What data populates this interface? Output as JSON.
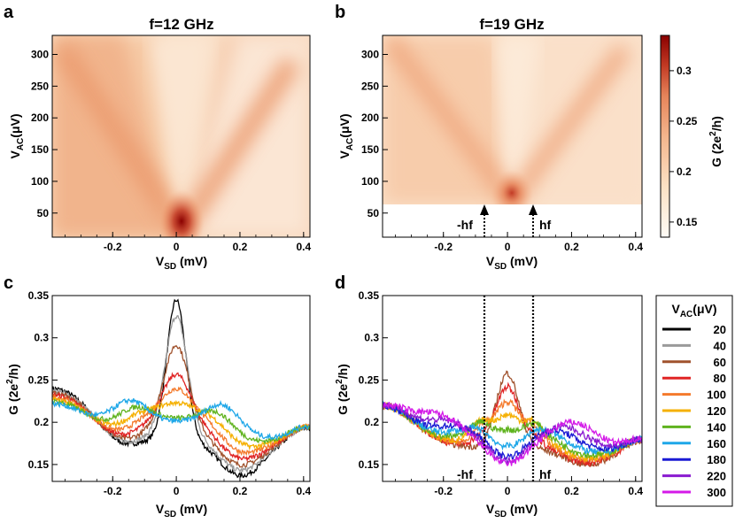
{
  "panels": {
    "a": {
      "letter": "a",
      "title": "f=12 GHz"
    },
    "b": {
      "letter": "b",
      "title": "f=19 GHz"
    },
    "c": {
      "letter": "c"
    },
    "d": {
      "letter": "d"
    }
  },
  "labels": {
    "vsd": "V",
    "vsd_sub": "SD",
    "vsd_unit": " (mV)",
    "vac": "V",
    "vac_sub": "AC",
    "vac_unit": "(μV)",
    "g": "G (2e",
    "g_sup": "2",
    "g_unit": "/h)",
    "hf": "hf",
    "minus_hf": "-hf"
  },
  "colorbar": {
    "ticks": [
      "0.3",
      "0.25",
      "0.2",
      "0.15"
    ],
    "range": [
      0.135,
      0.335
    ],
    "low_color": "#fefbf6",
    "high_color": "#8a0000"
  },
  "legend": {
    "title": "V",
    "title_sub": "AC",
    "title_unit": "(μV)",
    "entries": [
      {
        "label": "20",
        "color": "#000000"
      },
      {
        "label": "40",
        "color": "#9a9a9a"
      },
      {
        "label": "60",
        "color": "#a0522d"
      },
      {
        "label": "80",
        "color": "#e02424"
      },
      {
        "label": "100",
        "color": "#f47a2c"
      },
      {
        "label": "120",
        "color": "#f5b000"
      },
      {
        "label": "140",
        "color": "#5fb31e"
      },
      {
        "label": "160",
        "color": "#1ea7e8"
      },
      {
        "label": "180",
        "color": "#1a1ad4"
      },
      {
        "label": "220",
        "color": "#8a1ad0"
      },
      {
        "label": "300",
        "color": "#d41ae8"
      }
    ]
  },
  "chart_data": [
    {
      "panel": "a",
      "type": "heatmap",
      "title": "f=12 GHz",
      "xlabel": "V_SD (mV)",
      "ylabel": "V_AC(μV)",
      "xlim": [
        -0.39,
        0.42
      ],
      "ylim": [
        12,
        330
      ],
      "xticks": [
        "-0.2",
        "0",
        "0.2",
        "0.4"
      ],
      "yticks": [
        "50",
        "100",
        "150",
        "200",
        "250",
        "300"
      ],
      "zlabel": "G (2e²/h)",
      "features": {
        "peak_G": 0.33,
        "peak_at": [
          0,
          20
        ],
        "v_slope_per_mV": 0.85
      }
    },
    {
      "panel": "b",
      "type": "heatmap",
      "title": "f=19 GHz",
      "xlabel": "V_SD (mV)",
      "ylabel": "V_AC(μV)",
      "xlim": [
        -0.39,
        0.42
      ],
      "ylim": [
        12,
        330
      ],
      "data_ymin": 63,
      "xticks": [
        "-0.2",
        "0",
        "0.2",
        "0.4"
      ],
      "yticks": [
        "50",
        "100",
        "150",
        "200",
        "250",
        "300"
      ],
      "annotations": [
        "-hf",
        "hf"
      ],
      "hf_mV": 0.079
    },
    {
      "panel": "c",
      "type": "line",
      "xlabel": "V_SD (mV)",
      "ylabel": "G (2e²/h)",
      "xlim": [
        -0.39,
        0.42
      ],
      "ylim": [
        0.13,
        0.35
      ],
      "xticks": [
        "-0.2",
        "0",
        "0.2",
        "0.4"
      ],
      "yticks": [
        "0.15",
        "0.2",
        "0.25",
        "0.3",
        "0.35"
      ],
      "series": [
        {
          "name": "20",
          "peak": 0.335
        },
        {
          "name": "40",
          "peak": 0.31
        },
        {
          "name": "60",
          "peak": 0.273
        },
        {
          "name": "80",
          "peak": 0.24
        },
        {
          "name": "100",
          "peak": 0.228
        },
        {
          "name": "120",
          "peak": 0.218
        },
        {
          "name": "140",
          "peak": 0.207
        },
        {
          "name": "160",
          "peak": 0.21
        }
      ]
    },
    {
      "panel": "d",
      "type": "line",
      "xlabel": "V_SD (mV)",
      "ylabel": "G (2e²/h)",
      "xlim": [
        -0.39,
        0.42
      ],
      "ylim": [
        0.13,
        0.35
      ],
      "xticks": [
        "-0.2",
        "0",
        "0.2",
        "0.4"
      ],
      "yticks": [
        "0.15",
        "0.2",
        "0.25",
        "0.3",
        "0.35"
      ],
      "vlines": [
        -0.079,
        0.079
      ],
      "annotations": [
        "-hf",
        "hf"
      ],
      "series": [
        {
          "name": "60",
          "peak": 0.278
        },
        {
          "name": "80",
          "peak": 0.262
        },
        {
          "name": "100",
          "peak": 0.245
        },
        {
          "name": "120",
          "peak": 0.232
        },
        {
          "name": "140",
          "peak": 0.218
        },
        {
          "name": "160",
          "peak": 0.2
        },
        {
          "name": "180",
          "peak": 0.19
        },
        {
          "name": "220",
          "peak": 0.178
        },
        {
          "name": "300",
          "peak": 0.168
        }
      ]
    }
  ]
}
